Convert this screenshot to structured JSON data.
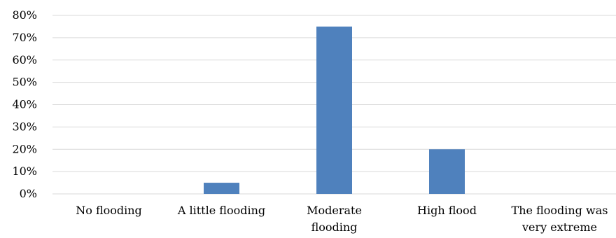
{
  "chart_data": {
    "type": "bar",
    "title": "",
    "xlabel": "",
    "ylabel": "",
    "categories": [
      [
        "No flooding"
      ],
      [
        "A little flooding"
      ],
      [
        "Moderate",
        "flooding"
      ],
      [
        "High flood"
      ],
      [
        "The flooding was",
        "very extreme"
      ]
    ],
    "values": [
      0,
      5,
      75,
      20,
      0
    ],
    "ylim": [
      0,
      80
    ],
    "yticks": [
      0,
      10,
      20,
      30,
      40,
      50,
      60,
      70,
      80
    ],
    "ytick_format": "percent",
    "grid": true,
    "legend": "none",
    "bar_color": "#4f81bd",
    "grid_color": "#d9d9d9"
  }
}
